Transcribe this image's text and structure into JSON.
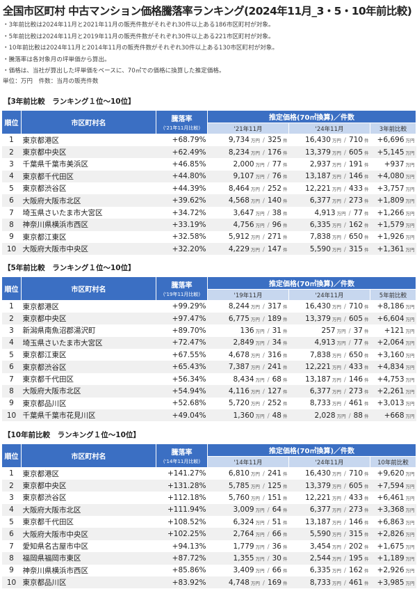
{
  "title": "全国市区町村 中古マンション価格騰落率ランキング(2024年11月_3・5・10年前比較)",
  "notes": [
    "・3年前比較は2024年11月と2021年11月の販売件数がそれぞれ30件以上ある186市区町村が対象。",
    "・5年前比較は2024年11月と2019年11月の販売件数がそれぞれ30件以上ある221市区町村が対象。",
    "・10年前比較は2024年11月と2014年11月の販売件数がそれぞれ30件以上ある130市区町村が対象。",
    "・騰落率は各対象月の坪単価から算出。",
    "・価格は、当社が算出した坪単価をベースに、70㎡での価格に換算した推定価格。",
    "単位：万円　件数：当月の販売件数"
  ],
  "units": {
    "price": "万円",
    "count": "件",
    "sep": "/"
  },
  "headers": {
    "rank": "順位",
    "name": "市区町村名",
    "rate": "騰落率",
    "price": "推定価格(70㎡換算)／件数"
  },
  "sections": [
    {
      "title": "【3年前比較　ランキング１位～10位】",
      "rate_sub": "('21年11月比較)",
      "prev": "'21年11月",
      "cur": "'24年11月",
      "diff": "3年前比較",
      "rows": [
        [
          "1",
          "東京都港区",
          "+68.79%",
          "9,734",
          "325",
          "16,430",
          "710",
          "+6,696"
        ],
        [
          "2",
          "東京都中央区",
          "+62.49%",
          "8,234",
          "176",
          "13,379",
          "605",
          "+5,145"
        ],
        [
          "3",
          "千葉県千葉市美浜区",
          "+46.85%",
          "2,000",
          "77",
          "2,937",
          "191",
          "+937"
        ],
        [
          "4",
          "東京都千代田区",
          "+44.80%",
          "9,107",
          "76",
          "13,187",
          "146",
          "+4,080"
        ],
        [
          "5",
          "東京都渋谷区",
          "+44.39%",
          "8,464",
          "252",
          "12,221",
          "433",
          "+3,757"
        ],
        [
          "6",
          "大阪府大阪市北区",
          "+39.62%",
          "4,568",
          "140",
          "6,377",
          "273",
          "+1,809"
        ],
        [
          "7",
          "埼玉県さいたま市大宮区",
          "+34.72%",
          "3,647",
          "38",
          "4,913",
          "77",
          "+1,266"
        ],
        [
          "8",
          "神奈川県横浜市西区",
          "+33.19%",
          "4,756",
          "96",
          "6,335",
          "162",
          "+1,579"
        ],
        [
          "9",
          "東京都江東区",
          "+32.58%",
          "5,912",
          "271",
          "7,838",
          "650",
          "+1,926"
        ],
        [
          "10",
          "大阪府大阪市中央区",
          "+32.20%",
          "4,229",
          "147",
          "5,590",
          "315",
          "+1,361"
        ]
      ]
    },
    {
      "title": "【5年前比較　ランキング１位～10位】",
      "rate_sub": "('19年11月比較)",
      "prev": "'19年11月",
      "cur": "'24年11月",
      "diff": "5年前比較",
      "rows": [
        [
          "1",
          "東京都港区",
          "+99.29%",
          "8,244",
          "317",
          "16,430",
          "710",
          "+8,186"
        ],
        [
          "2",
          "東京都中央区",
          "+97.47%",
          "6,775",
          "189",
          "13,379",
          "605",
          "+6,604"
        ],
        [
          "3",
          "新潟県南魚沼郡湯沢町",
          "+89.70%",
          "136",
          "31",
          "257",
          "37",
          "+121"
        ],
        [
          "4",
          "埼玉県さいたま市大宮区",
          "+72.47%",
          "2,849",
          "34",
          "4,913",
          "77",
          "+2,064"
        ],
        [
          "5",
          "東京都江東区",
          "+67.55%",
          "4,678",
          "316",
          "7,838",
          "650",
          "+3,160"
        ],
        [
          "6",
          "東京都渋谷区",
          "+65.43%",
          "7,387",
          "241",
          "12,221",
          "433",
          "+4,834"
        ],
        [
          "7",
          "東京都千代田区",
          "+56.34%",
          "8,434",
          "68",
          "13,187",
          "146",
          "+4,753"
        ],
        [
          "8",
          "大阪府大阪市北区",
          "+54.94%",
          "4,116",
          "127",
          "6,377",
          "273",
          "+2,261"
        ],
        [
          "9",
          "東京都品川区",
          "+52.68%",
          "5,720",
          "252",
          "8,733",
          "461",
          "+3,013"
        ],
        [
          "10",
          "千葉県千葉市花見川区",
          "+49.04%",
          "1,360",
          "48",
          "2,028",
          "88",
          "+668"
        ]
      ]
    },
    {
      "title": "【10年前比較　ランキング１位～10位】",
      "rate_sub": "('14年11月比較)",
      "prev": "'14年11月",
      "cur": "'24年11月",
      "diff": "10年前比較",
      "rows": [
        [
          "1",
          "東京都港区",
          "+141.27%",
          "6,810",
          "241",
          "16,430",
          "710",
          "+9,620"
        ],
        [
          "2",
          "東京都中央区",
          "+131.28%",
          "5,785",
          "125",
          "13,379",
          "605",
          "+7,594"
        ],
        [
          "3",
          "東京都渋谷区",
          "+112.18%",
          "5,760",
          "151",
          "12,221",
          "433",
          "+6,461"
        ],
        [
          "4",
          "大阪府大阪市北区",
          "+111.94%",
          "3,009",
          "64",
          "6,377",
          "273",
          "+3,368"
        ],
        [
          "5",
          "東京都千代田区",
          "+108.52%",
          "6,324",
          "51",
          "13,187",
          "146",
          "+6,863"
        ],
        [
          "6",
          "大阪府大阪市中央区",
          "+102.25%",
          "2,764",
          "66",
          "5,590",
          "315",
          "+2,826"
        ],
        [
          "7",
          "愛知県名古屋市中区",
          "+94.13%",
          "1,779",
          "36",
          "3,454",
          "202",
          "+1,675"
        ],
        [
          "8",
          "福岡県福岡市東区",
          "+87.72%",
          "1,355",
          "30",
          "2,544",
          "195",
          "+1,189"
        ],
        [
          "9",
          "神奈川県横浜市西区",
          "+85.86%",
          "3,409",
          "66",
          "6,335",
          "162",
          "+2,926"
        ],
        [
          "10",
          "東京都品川区",
          "+83.92%",
          "4,748",
          "169",
          "8,733",
          "461",
          "+3,985"
        ]
      ]
    }
  ]
}
